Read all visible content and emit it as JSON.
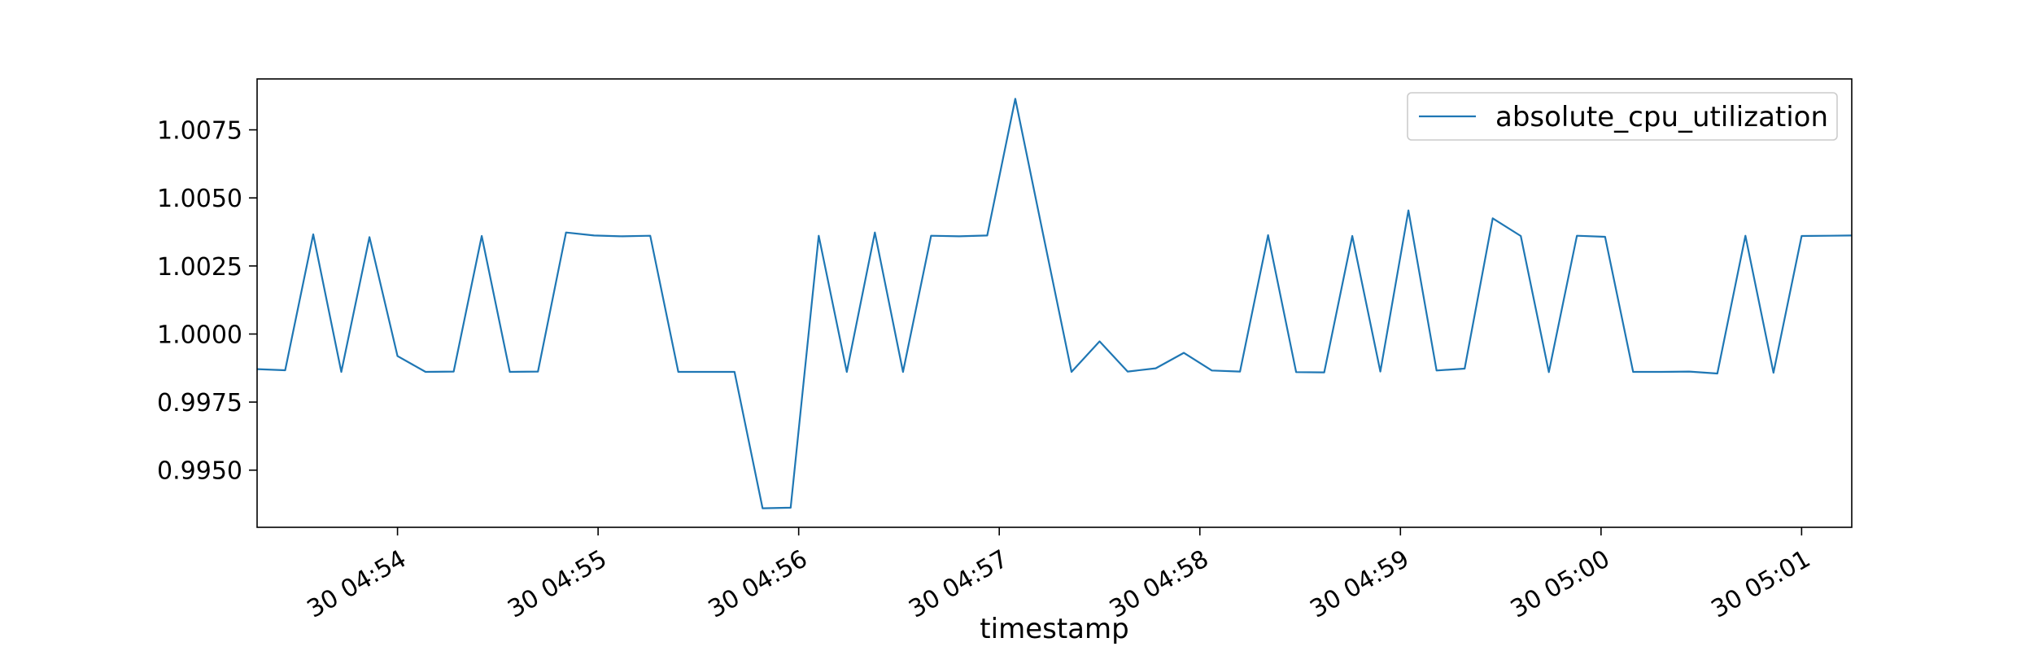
{
  "chart_data": {
    "type": "line",
    "title": "",
    "xlabel": "timestamp",
    "ylabel": "",
    "legend": {
      "placement": "top-right",
      "entries": [
        "absolute_cpu_utilization"
      ]
    },
    "grid": false,
    "xlim": [
      -0.7,
      7.25
    ],
    "ylim": [
      0.9929,
      1.00937
    ],
    "x_ticks": [
      {
        "value": 0,
        "label": "30 04:54"
      },
      {
        "value": 1,
        "label": "30 04:55"
      },
      {
        "value": 2,
        "label": "30 04:56"
      },
      {
        "value": 3,
        "label": "30 04:57"
      },
      {
        "value": 4,
        "label": "30 04:58"
      },
      {
        "value": 5,
        "label": "30 04:59"
      },
      {
        "value": 6,
        "label": "30 05:00"
      },
      {
        "value": 7,
        "label": "30 05:01"
      }
    ],
    "y_ticks": [
      {
        "value": 0.995,
        "label": "0.9950"
      },
      {
        "value": 0.9975,
        "label": "0.9975"
      },
      {
        "value": 1.0,
        "label": "1.0000"
      },
      {
        "value": 1.0025,
        "label": "1.0025"
      },
      {
        "value": 1.005,
        "label": "1.0050"
      },
      {
        "value": 1.0075,
        "label": "1.0075"
      }
    ],
    "series": [
      {
        "name": "absolute_cpu_utilization",
        "color": "#1f77b4",
        "x": [
          -0.7,
          -0.56,
          -0.42,
          -0.28,
          -0.14,
          0.0,
          0.14,
          0.28,
          0.42,
          0.56,
          0.7,
          0.84,
          0.98,
          1.12,
          1.26,
          1.4,
          1.54,
          1.68,
          1.82,
          1.96,
          2.1,
          2.24,
          2.38,
          2.52,
          2.66,
          2.8,
          2.94,
          3.08,
          3.22,
          3.36,
          3.5,
          3.64,
          3.78,
          3.92,
          4.06,
          4.2,
          4.34,
          4.48,
          4.62,
          4.76,
          4.9,
          5.04,
          5.18,
          5.32,
          5.46,
          5.6,
          5.74,
          5.88,
          6.02,
          6.16,
          6.3,
          6.44,
          6.58,
          6.72,
          6.86,
          7.0,
          7.14,
          7.25
        ],
        "values": [
          0.99871,
          0.99867,
          1.00366,
          0.99861,
          1.00356,
          0.99919,
          0.99861,
          0.99862,
          1.0036,
          0.99861,
          0.99862,
          1.00373,
          1.00362,
          1.00359,
          1.00361,
          0.99861,
          0.99861,
          0.99861,
          0.9936,
          0.99362,
          1.00361,
          0.99861,
          1.00373,
          0.99861,
          1.00361,
          1.00359,
          1.00362,
          1.00864,
          1.00362,
          0.99861,
          0.99973,
          0.99862,
          0.99874,
          0.99931,
          0.99866,
          0.99862,
          1.00363,
          0.9986,
          0.99859,
          1.0036,
          0.99862,
          1.00454,
          0.99866,
          0.99873,
          1.00425,
          1.0036,
          0.9986,
          1.00361,
          1.00357,
          0.99861,
          0.99861,
          0.99862,
          0.99855,
          1.00361,
          0.99858,
          1.0036,
          1.00361,
          1.00362
        ]
      }
    ]
  }
}
